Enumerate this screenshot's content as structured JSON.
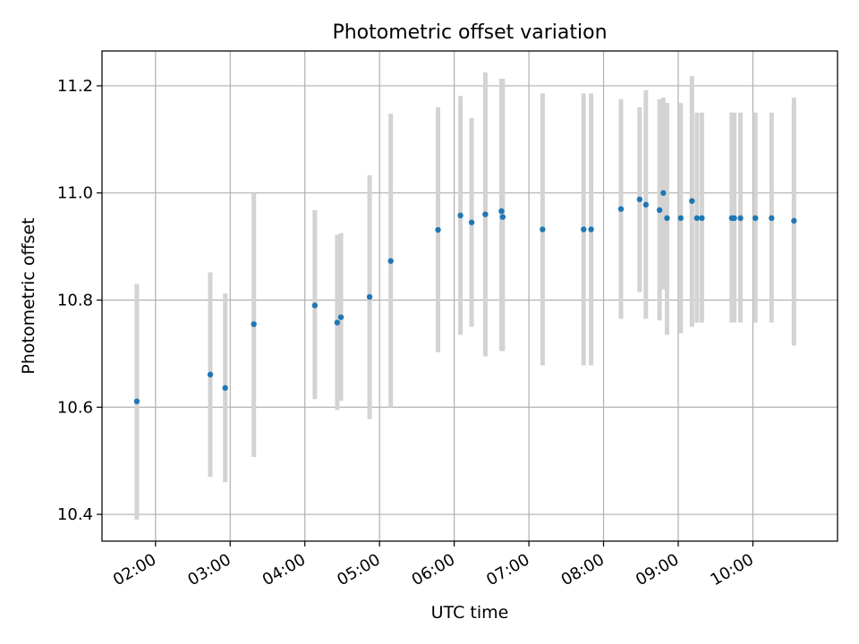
{
  "chart_data": {
    "type": "scatter",
    "title": "Photometric offset variation",
    "xlabel": "UTC time",
    "ylabel": "Photometric offset",
    "xlim": [
      "01:17",
      "11:08"
    ],
    "ylim": [
      10.35,
      11.265
    ],
    "x_ticks": [
      "02:00",
      "03:00",
      "04:00",
      "05:00",
      "06:00",
      "07:00",
      "08:00",
      "09:00",
      "10:00"
    ],
    "y_ticks": [
      "10.4",
      "10.6",
      "10.8",
      "11.0",
      "11.2"
    ],
    "grid": true,
    "legend": "none",
    "points": [
      {
        "x": "01:45",
        "y": 10.611,
        "ylow": 10.39,
        "yhigh": 10.83
      },
      {
        "x": "02:44",
        "y": 10.661,
        "ylow": 10.47,
        "yhigh": 10.852
      },
      {
        "x": "02:56",
        "y": 10.636,
        "ylow": 10.46,
        "yhigh": 10.812
      },
      {
        "x": "03:19",
        "y": 10.755,
        "ylow": 10.507,
        "yhigh": 11.0
      },
      {
        "x": "04:08",
        "y": 10.79,
        "ylow": 10.615,
        "yhigh": 10.968
      },
      {
        "x": "04:26",
        "y": 10.758,
        "ylow": 10.595,
        "yhigh": 10.922
      },
      {
        "x": "04:29",
        "y": 10.768,
        "ylow": 10.612,
        "yhigh": 10.925
      },
      {
        "x": "04:52",
        "y": 10.806,
        "ylow": 10.578,
        "yhigh": 11.033
      },
      {
        "x": "05:09",
        "y": 10.873,
        "ylow": 10.6,
        "yhigh": 11.148
      },
      {
        "x": "05:47",
        "y": 10.931,
        "ylow": 10.703,
        "yhigh": 11.16
      },
      {
        "x": "06:05",
        "y": 10.958,
        "ylow": 10.735,
        "yhigh": 11.181
      },
      {
        "x": "06:14",
        "y": 10.945,
        "ylow": 10.75,
        "yhigh": 11.14
      },
      {
        "x": "06:25",
        "y": 10.96,
        "ylow": 10.695,
        "yhigh": 11.225
      },
      {
        "x": "06:38",
        "y": 10.966,
        "ylow": 10.705,
        "yhigh": 11.213
      },
      {
        "x": "06:39",
        "y": 10.955,
        "ylow": 10.705,
        "yhigh": 11.213
      },
      {
        "x": "07:11",
        "y": 10.932,
        "ylow": 10.678,
        "yhigh": 11.186
      },
      {
        "x": "07:44",
        "y": 10.932,
        "ylow": 10.678,
        "yhigh": 11.186
      },
      {
        "x": "07:50",
        "y": 10.932,
        "ylow": 10.678,
        "yhigh": 11.186
      },
      {
        "x": "08:14",
        "y": 10.97,
        "ylow": 10.765,
        "yhigh": 11.175
      },
      {
        "x": "08:29",
        "y": 10.988,
        "ylow": 10.815,
        "yhigh": 11.16
      },
      {
        "x": "08:34",
        "y": 10.978,
        "ylow": 10.765,
        "yhigh": 11.192
      },
      {
        "x": "08:45",
        "y": 10.968,
        "ylow": 10.762,
        "yhigh": 11.175
      },
      {
        "x": "08:48",
        "y": 11.0,
        "ylow": 10.82,
        "yhigh": 11.178
      },
      {
        "x": "08:51",
        "y": 10.953,
        "ylow": 10.735,
        "yhigh": 11.168
      },
      {
        "x": "09:02",
        "y": 10.953,
        "ylow": 10.738,
        "yhigh": 11.168
      },
      {
        "x": "09:11",
        "y": 10.985,
        "ylow": 10.75,
        "yhigh": 11.218
      },
      {
        "x": "09:15",
        "y": 10.953,
        "ylow": 10.758,
        "yhigh": 11.15
      },
      {
        "x": "09:19",
        "y": 10.953,
        "ylow": 10.758,
        "yhigh": 11.15
      },
      {
        "x": "09:43",
        "y": 10.953,
        "ylow": 10.758,
        "yhigh": 11.15
      },
      {
        "x": "09:45",
        "y": 10.953,
        "ylow": 10.758,
        "yhigh": 11.15
      },
      {
        "x": "09:50",
        "y": 10.953,
        "ylow": 10.758,
        "yhigh": 11.15
      },
      {
        "x": "10:02",
        "y": 10.953,
        "ylow": 10.758,
        "yhigh": 11.15
      },
      {
        "x": "10:15",
        "y": 10.953,
        "ylow": 10.758,
        "yhigh": 11.15
      },
      {
        "x": "10:33",
        "y": 10.948,
        "ylow": 10.715,
        "yhigh": 11.178
      }
    ],
    "colors": {
      "marker": "#1f77b4",
      "errorbar": "#d3d3d3",
      "grid": "#b0b0b0",
      "axes": "#000000"
    }
  }
}
